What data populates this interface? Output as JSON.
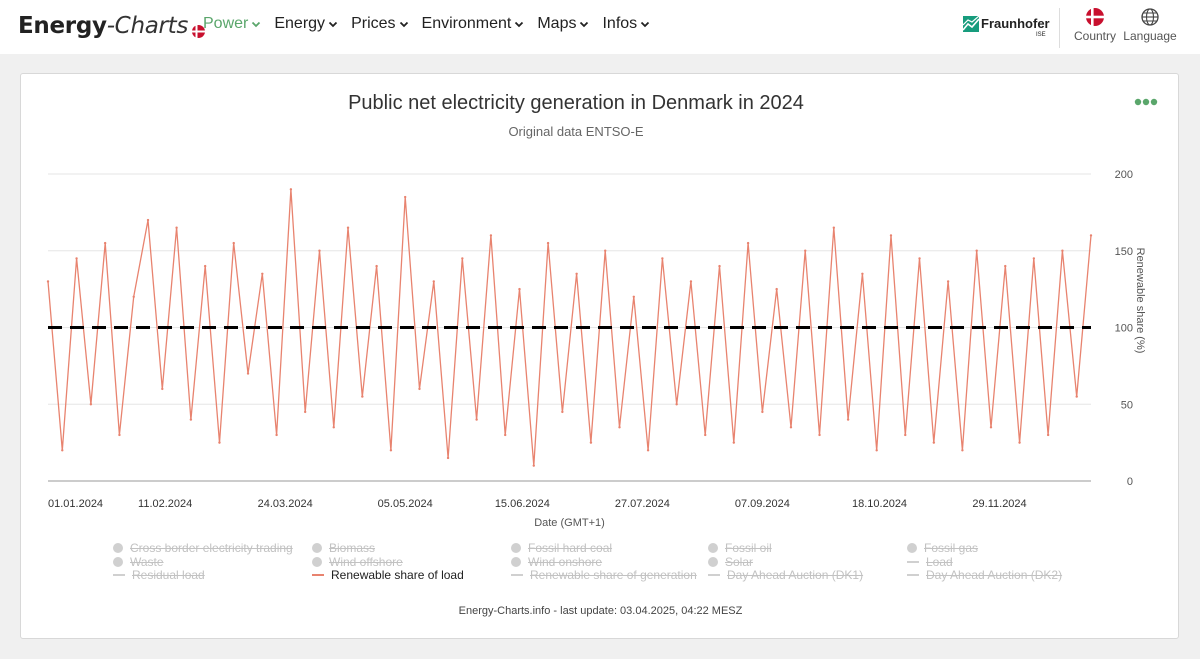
{
  "header": {
    "brand_bold": "Energy",
    "brand_italic": "-Charts",
    "nav": [
      "Power",
      "Energy",
      "Prices",
      "Environment",
      "Maps",
      "Infos"
    ],
    "partner_logo": "Fraunhofer",
    "partner_sub": "ISE",
    "country_label": "Country",
    "language_label": "Language",
    "icons": [
      "denmark-flag-icon",
      "globe-icon",
      "chevron-down-icon",
      "fraunhofer-logo-icon",
      "more-dots-icon"
    ]
  },
  "colors": {
    "accent_green": "#5aa66b",
    "series_red": "#e8836f",
    "flag_red": "#c8102e",
    "reference_line": "#000000"
  },
  "legend": {
    "items": [
      {
        "label": "Cross border electricity trading",
        "marker": "dot",
        "active": false
      },
      {
        "label": "Biomass",
        "marker": "dot",
        "active": false
      },
      {
        "label": "Fossil hard coal",
        "marker": "dot",
        "active": false
      },
      {
        "label": "Fossil oil",
        "marker": "dot",
        "active": false
      },
      {
        "label": "Fossil gas",
        "marker": "dot",
        "active": false
      },
      {
        "label": "Waste",
        "marker": "dot",
        "active": false
      },
      {
        "label": "Wind offshore",
        "marker": "dot",
        "active": false
      },
      {
        "label": "Wind onshore",
        "marker": "dot",
        "active": false
      },
      {
        "label": "Solar",
        "marker": "dot",
        "active": false
      },
      {
        "label": "Load",
        "marker": "line",
        "active": false
      },
      {
        "label": "Residual load",
        "marker": "line",
        "active": false
      },
      {
        "label": "Renewable share of load",
        "marker": "line",
        "active": true
      },
      {
        "label": "Renewable share of generation",
        "marker": "line",
        "active": false
      },
      {
        "label": "Day Ahead Auction (DK1)",
        "marker": "line",
        "active": false
      },
      {
        "label": "Day Ahead Auction (DK2)",
        "marker": "line",
        "active": false
      }
    ]
  },
  "footer": {
    "note": "Energy-Charts.info - last update: 03.04.2025, 04:22 MESZ"
  },
  "chart_data": {
    "type": "line",
    "title": "Public net electricity generation in Denmark in 2024",
    "subtitle": "Original data ENTSO-E",
    "xlabel": "Date (GMT+1)",
    "ylabel": "Renewable share (%)",
    "x_tick_labels": [
      "01.01.2024",
      "11.02.2024",
      "24.03.2024",
      "05.05.2024",
      "15.06.2024",
      "27.07.2024",
      "07.09.2024",
      "18.10.2024",
      "29.11.2024"
    ],
    "y_ticks": [
      0,
      50,
      100,
      150,
      200
    ],
    "ylim": [
      0,
      200
    ],
    "xlim": [
      "01.01.2024",
      "31.12.2024"
    ],
    "grid": true,
    "y_axis_position": "right",
    "reference_line": {
      "value": 100,
      "style": "dashed"
    },
    "series": [
      {
        "name": "Renewable share of load",
        "x": [
          "01.01.2024",
          "06.01.2024",
          "11.01.2024",
          "16.01.2024",
          "21.01.2024",
          "26.01.2024",
          "31.01.2024",
          "05.02.2024",
          "10.02.2024",
          "15.02.2024",
          "20.02.2024",
          "25.02.2024",
          "01.03.2024",
          "06.03.2024",
          "11.03.2024",
          "16.03.2024",
          "21.03.2024",
          "26.03.2024",
          "31.03.2024",
          "05.04.2024",
          "10.04.2024",
          "15.04.2024",
          "20.04.2024",
          "25.04.2024",
          "30.04.2024",
          "05.05.2024",
          "10.05.2024",
          "15.05.2024",
          "20.05.2024",
          "25.05.2024",
          "30.05.2024",
          "04.06.2024",
          "09.06.2024",
          "14.06.2024",
          "19.06.2024",
          "24.06.2024",
          "29.06.2024",
          "04.07.2024",
          "09.07.2024",
          "14.07.2024",
          "19.07.2024",
          "24.07.2024",
          "29.07.2024",
          "03.08.2024",
          "08.08.2024",
          "13.08.2024",
          "18.08.2024",
          "23.08.2024",
          "28.08.2024",
          "02.09.2024",
          "07.09.2024",
          "12.09.2024",
          "17.09.2024",
          "22.09.2024",
          "27.09.2024",
          "02.10.2024",
          "07.10.2024",
          "12.10.2024",
          "17.10.2024",
          "22.10.2024",
          "27.10.2024",
          "01.11.2024",
          "06.11.2024",
          "11.11.2024",
          "16.11.2024",
          "21.11.2024",
          "26.11.2024",
          "01.12.2024",
          "06.12.2024",
          "11.12.2024",
          "16.12.2024",
          "21.12.2024",
          "26.12.2024",
          "31.12.2024"
        ],
        "values": [
          130,
          20,
          145,
          50,
          155,
          30,
          120,
          170,
          60,
          165,
          40,
          140,
          25,
          155,
          70,
          135,
          30,
          190,
          45,
          150,
          35,
          165,
          55,
          140,
          20,
          185,
          60,
          130,
          15,
          145,
          40,
          160,
          30,
          125,
          10,
          155,
          45,
          135,
          25,
          150,
          35,
          120,
          20,
          145,
          50,
          130,
          30,
          140,
          25,
          155,
          45,
          125,
          35,
          150,
          30,
          165,
          40,
          135,
          20,
          160,
          30,
          145,
          25,
          130,
          20,
          150,
          35,
          140,
          25,
          145,
          30,
          150,
          55,
          160
        ]
      }
    ]
  }
}
